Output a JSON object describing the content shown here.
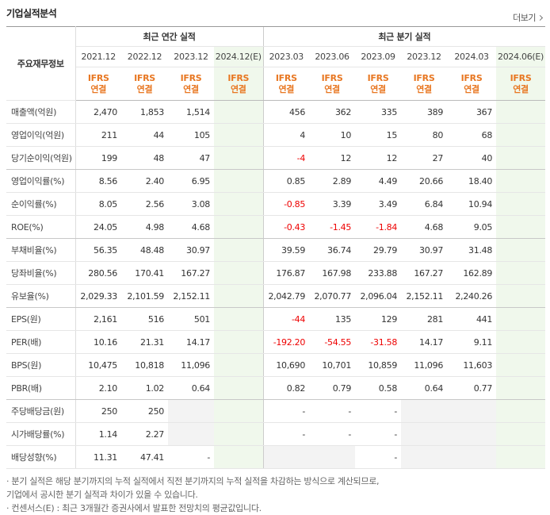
{
  "header": {
    "title": "기업실적분석",
    "more": "더보기"
  },
  "table": {
    "row_header": "주요재무정보",
    "groups": [
      {
        "label": "최근 연간 실적",
        "span": 4
      },
      {
        "label": "최근 분기 실적",
        "span": 6
      }
    ],
    "periods": [
      "2021.12",
      "2022.12",
      "2023.12",
      "2024.12(E)",
      "2023.03",
      "2023.06",
      "2023.09",
      "2023.12",
      "2024.03",
      "2024.06(E)"
    ],
    "basis": [
      {
        "standard": "IFRS",
        "scope": "연결"
      },
      {
        "standard": "IFRS",
        "scope": "연결"
      },
      {
        "standard": "IFRS",
        "scope": "연결"
      },
      {
        "standard": "IFRS",
        "scope": "연결"
      },
      {
        "standard": "IFRS",
        "scope": "연결"
      },
      {
        "standard": "IFRS",
        "scope": "연결"
      },
      {
        "standard": "IFRS",
        "scope": "연결"
      },
      {
        "standard": "IFRS",
        "scope": "연결"
      },
      {
        "standard": "IFRS",
        "scope": "연결"
      },
      {
        "standard": "IFRS",
        "scope": "연결"
      }
    ],
    "rows": [
      {
        "label": "매출액(억원)",
        "cells": [
          "2,470",
          "1,853",
          "1,514",
          null,
          "456",
          "362",
          "335",
          "389",
          "367",
          null
        ]
      },
      {
        "label": "영업이익(억원)",
        "cells": [
          "211",
          "44",
          "105",
          null,
          "4",
          "10",
          "15",
          "80",
          "68",
          null
        ]
      },
      {
        "label": "당기순이익(억원)",
        "cells": [
          "199",
          "48",
          "47",
          null,
          "-4",
          "12",
          "12",
          "27",
          "40",
          null
        ]
      },
      {
        "label": "영업이익률(%)",
        "cells": [
          "8.56",
          "2.40",
          "6.95",
          null,
          "0.85",
          "2.89",
          "4.49",
          "20.66",
          "18.40",
          null
        ]
      },
      {
        "label": "순이익률(%)",
        "cells": [
          "8.05",
          "2.56",
          "3.08",
          null,
          "-0.85",
          "3.39",
          "3.49",
          "6.84",
          "10.94",
          null
        ]
      },
      {
        "label": "ROE(%)",
        "cells": [
          "24.05",
          "4.98",
          "4.68",
          null,
          "-0.43",
          "-1.45",
          "-1.84",
          "4.68",
          "9.05",
          null
        ]
      },
      {
        "label": "부채비율(%)",
        "cells": [
          "56.35",
          "48.48",
          "30.97",
          null,
          "39.59",
          "36.74",
          "29.79",
          "30.97",
          "31.48",
          null
        ]
      },
      {
        "label": "당좌비율(%)",
        "cells": [
          "280.56",
          "170.41",
          "167.27",
          null,
          "176.87",
          "167.98",
          "233.88",
          "167.27",
          "162.89",
          null
        ]
      },
      {
        "label": "유보율(%)",
        "cells": [
          "2,029.33",
          "2,101.59",
          "2,152.11",
          null,
          "2,042.79",
          "2,070.77",
          "2,096.04",
          "2,152.11",
          "2,240.26",
          null
        ]
      },
      {
        "label": "EPS(원)",
        "cells": [
          "2,161",
          "516",
          "501",
          null,
          "-44",
          "135",
          "129",
          "281",
          "441",
          null
        ]
      },
      {
        "label": "PER(배)",
        "cells": [
          "10.16",
          "21.31",
          "14.17",
          null,
          "-192.20",
          "-54.55",
          "-31.58",
          "14.17",
          "9.11",
          null
        ]
      },
      {
        "label": "BPS(원)",
        "cells": [
          "10,475",
          "10,818",
          "11,096",
          null,
          "10,690",
          "10,701",
          "10,859",
          "11,096",
          "11,603",
          null
        ]
      },
      {
        "label": "PBR(배)",
        "cells": [
          "2.10",
          "1.02",
          "0.64",
          null,
          "0.82",
          "0.79",
          "0.58",
          "0.64",
          "0.77",
          null
        ]
      },
      {
        "label": "주당배당금(원)",
        "cells": [
          "250",
          "250",
          null,
          null,
          "-",
          "-",
          "-",
          null,
          null,
          null
        ]
      },
      {
        "label": "시가배당률(%)",
        "cells": [
          "1.14",
          "2.27",
          null,
          null,
          "-",
          "-",
          "-",
          null,
          null,
          null
        ]
      },
      {
        "label": "배당성향(%)",
        "cells": [
          "11.31",
          "47.41",
          "-",
          null,
          null,
          null,
          "-",
          null,
          null,
          null
        ]
      }
    ]
  },
  "notes": [
    "· 분기 실적은 해당 분기까지의 누적 실적에서 직전 분기까지의 누적 실적을 차감하는 방식으로 계산되므로,",
    "  기업에서 공시한 분기 실적과 차이가 있을 수 있습니다.",
    "· 컨센서스(E) : 최근 3개월간 증권사에서 발표한 전망치의 평균값입니다."
  ]
}
